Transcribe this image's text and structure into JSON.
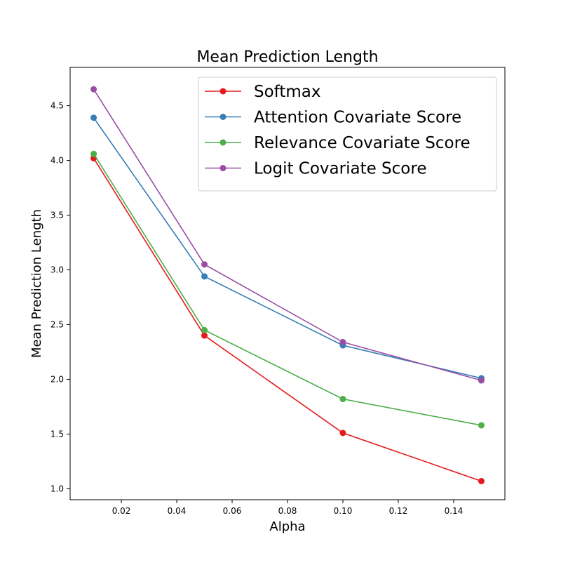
{
  "chart_data": {
    "type": "line",
    "title": "Mean Prediction Length",
    "xlabel": "Alpha",
    "ylabel": "Mean Prediction Length",
    "x": [
      0.01,
      0.05,
      0.1,
      0.15
    ],
    "xlim": [
      0.0015,
      0.1585
    ],
    "ylim": [
      0.9,
      4.85
    ],
    "xticks": [
      "0.02",
      "0.04",
      "0.06",
      "0.08",
      "0.10",
      "0.12",
      "0.14"
    ],
    "yticks": [
      "1.0",
      "1.5",
      "2.0",
      "2.5",
      "3.0",
      "3.5",
      "4.0",
      "4.5"
    ],
    "grid": false,
    "legend_position": "top-right",
    "series": [
      {
        "name": "Softmax",
        "color": "#e41a1c",
        "values": [
          4.02,
          2.4,
          1.51,
          1.07
        ]
      },
      {
        "name": "Attention Covariate Score",
        "color": "#377eb8",
        "values": [
          4.39,
          2.94,
          2.31,
          2.01
        ]
      },
      {
        "name": "Relevance Covariate Score",
        "color": "#4daf4a",
        "values": [
          4.06,
          2.45,
          1.82,
          1.58
        ]
      },
      {
        "name": "Logit Covariate Score",
        "color": "#984ea3",
        "values": [
          4.65,
          3.05,
          2.34,
          1.99
        ]
      }
    ]
  }
}
